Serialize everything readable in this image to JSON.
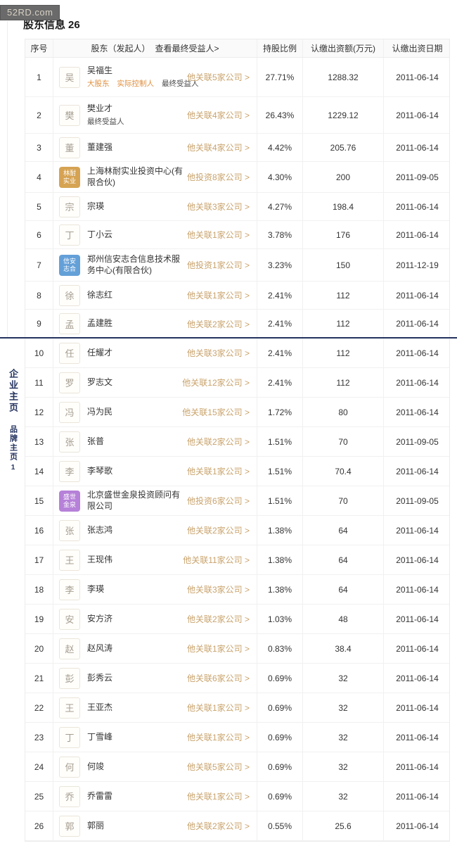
{
  "watermark": "52RD.com",
  "page": {
    "title": "股东信息",
    "count": "26"
  },
  "sidebar": {
    "tab_company": "企业主页",
    "tab_brand": "品牌主页",
    "brand_count": "1"
  },
  "colors": {
    "link_gold": "#c9a36c",
    "tag_orange": "#df8e3c",
    "divider_navy": "#24335f",
    "avatar_gold": "#d6a353",
    "avatar_blue": "#64a0d8",
    "avatar_purple": "#b681d8"
  },
  "table": {
    "headers": {
      "index": "序号",
      "shareholder": "股东（发起人）",
      "beneficiary_link": "查看最终受益人>",
      "ratio": "持股比例",
      "amount": "认缴出资额(万元)",
      "date": "认缴出资日期"
    },
    "rows": [
      {
        "num": "1",
        "avatar": {
          "style": "person",
          "text": "吴"
        },
        "name": "吴福生",
        "tags": [
          {
            "text": "大股东",
            "tone": "orange"
          },
          {
            "text": "实际控制人",
            "tone": "orange"
          },
          {
            "text": "最终受益人",
            "tone": "dark"
          }
        ],
        "link": "他关联5家公司 >",
        "ratio": "27.71%",
        "amount": "1288.32",
        "date": "2011-06-14"
      },
      {
        "num": "2",
        "avatar": {
          "style": "person",
          "text": "樊"
        },
        "name": "樊业才",
        "tags": [
          {
            "text": "最终受益人",
            "tone": "dark"
          }
        ],
        "link": "他关联4家公司 >",
        "ratio": "26.43%",
        "amount": "1229.12",
        "date": "2011-06-14"
      },
      {
        "num": "3",
        "avatar": {
          "style": "person",
          "text": "董"
        },
        "name": "董建强",
        "tags": [],
        "link": "他关联4家公司 >",
        "ratio": "4.42%",
        "amount": "205.76",
        "date": "2011-06-14"
      },
      {
        "num": "4",
        "avatar": {
          "style": "org-gold",
          "lines": [
            "林耐",
            "实业"
          ]
        },
        "name": "上海林耐实业投资中心(有限合伙)",
        "tags": [],
        "link": "他投资8家公司 >",
        "ratio": "4.30%",
        "amount": "200",
        "date": "2011-09-05"
      },
      {
        "num": "5",
        "avatar": {
          "style": "person",
          "text": "宗"
        },
        "name": "宗瑛",
        "tags": [],
        "link": "他关联3家公司 >",
        "ratio": "4.27%",
        "amount": "198.4",
        "date": "2011-06-14"
      },
      {
        "num": "6",
        "avatar": {
          "style": "person",
          "text": "丁"
        },
        "name": "丁小云",
        "tags": [],
        "link": "他关联1家公司 >",
        "ratio": "3.78%",
        "amount": "176",
        "date": "2011-06-14"
      },
      {
        "num": "7",
        "avatar": {
          "style": "org-blue",
          "lines": [
            "信安",
            "志合"
          ]
        },
        "name": "郑州信安志合信息技术服务中心(有限合伙)",
        "tags": [],
        "link": "他投资1家公司 >",
        "ratio": "3.23%",
        "amount": "150",
        "date": "2011-12-19"
      },
      {
        "num": "8",
        "avatar": {
          "style": "person",
          "text": "徐"
        },
        "name": "徐志红",
        "tags": [],
        "link": "他关联1家公司 >",
        "ratio": "2.41%",
        "amount": "112",
        "date": "2011-06-14"
      },
      {
        "num": "9",
        "avatar": {
          "style": "person",
          "text": "孟"
        },
        "name": "孟建胜",
        "tags": [],
        "link": "他关联2家公司 >",
        "ratio": "2.41%",
        "amount": "112",
        "date": "2011-06-14"
      },
      {
        "num": "10",
        "avatar": {
          "style": "person",
          "text": "任"
        },
        "name": "任耀才",
        "tags": [],
        "link": "他关联3家公司 >",
        "ratio": "2.41%",
        "amount": "112",
        "date": "2011-06-14"
      },
      {
        "num": "11",
        "avatar": {
          "style": "person",
          "text": "罗"
        },
        "name": "罗志文",
        "tags": [],
        "link": "他关联12家公司 >",
        "ratio": "2.41%",
        "amount": "112",
        "date": "2011-06-14"
      },
      {
        "num": "12",
        "avatar": {
          "style": "person",
          "text": "冯"
        },
        "name": "冯为民",
        "tags": [],
        "link": "他关联15家公司 >",
        "ratio": "1.72%",
        "amount": "80",
        "date": "2011-06-14"
      },
      {
        "num": "13",
        "avatar": {
          "style": "person",
          "text": "张"
        },
        "name": "张普",
        "tags": [],
        "link": "他关联2家公司 >",
        "ratio": "1.51%",
        "amount": "70",
        "date": "2011-09-05"
      },
      {
        "num": "14",
        "avatar": {
          "style": "person",
          "text": "李"
        },
        "name": "李琴歌",
        "tags": [],
        "link": "他关联1家公司 >",
        "ratio": "1.51%",
        "amount": "70.4",
        "date": "2011-06-14"
      },
      {
        "num": "15",
        "avatar": {
          "style": "org-purple",
          "lines": [
            "盛世",
            "金泉"
          ]
        },
        "name": "北京盛世金泉投资顾问有限公司",
        "tags": [],
        "link": "他投资6家公司 >",
        "ratio": "1.51%",
        "amount": "70",
        "date": "2011-09-05"
      },
      {
        "num": "16",
        "avatar": {
          "style": "person",
          "text": "张"
        },
        "name": "张志鸿",
        "tags": [],
        "link": "他关联2家公司 >",
        "ratio": "1.38%",
        "amount": "64",
        "date": "2011-06-14"
      },
      {
        "num": "17",
        "avatar": {
          "style": "person",
          "text": "王"
        },
        "name": "王现伟",
        "tags": [],
        "link": "他关联11家公司 >",
        "ratio": "1.38%",
        "amount": "64",
        "date": "2011-06-14"
      },
      {
        "num": "18",
        "avatar": {
          "style": "person",
          "text": "李"
        },
        "name": "李瑛",
        "tags": [],
        "link": "他关联3家公司 >",
        "ratio": "1.38%",
        "amount": "64",
        "date": "2011-06-14"
      },
      {
        "num": "19",
        "avatar": {
          "style": "person",
          "text": "安"
        },
        "name": "安方济",
        "tags": [],
        "link": "他关联2家公司 >",
        "ratio": "1.03%",
        "amount": "48",
        "date": "2011-06-14"
      },
      {
        "num": "20",
        "avatar": {
          "style": "person",
          "text": "赵"
        },
        "name": "赵风涛",
        "tags": [],
        "link": "他关联1家公司 >",
        "ratio": "0.83%",
        "amount": "38.4",
        "date": "2011-06-14"
      },
      {
        "num": "21",
        "avatar": {
          "style": "person",
          "text": "彭"
        },
        "name": "彭秀云",
        "tags": [],
        "link": "他关联6家公司 >",
        "ratio": "0.69%",
        "amount": "32",
        "date": "2011-06-14"
      },
      {
        "num": "22",
        "avatar": {
          "style": "person",
          "text": "王"
        },
        "name": "王亚杰",
        "tags": [],
        "link": "他关联1家公司 >",
        "ratio": "0.69%",
        "amount": "32",
        "date": "2011-06-14"
      },
      {
        "num": "23",
        "avatar": {
          "style": "person",
          "text": "丁"
        },
        "name": "丁雪峰",
        "tags": [],
        "link": "他关联1家公司 >",
        "ratio": "0.69%",
        "amount": "32",
        "date": "2011-06-14"
      },
      {
        "num": "24",
        "avatar": {
          "style": "person",
          "text": "何"
        },
        "name": "何竣",
        "tags": [],
        "link": "他关联5家公司 >",
        "ratio": "0.69%",
        "amount": "32",
        "date": "2011-06-14"
      },
      {
        "num": "25",
        "avatar": {
          "style": "person",
          "text": "乔"
        },
        "name": "乔雷雷",
        "tags": [],
        "link": "他关联1家公司 >",
        "ratio": "0.69%",
        "amount": "32",
        "date": "2011-06-14"
      },
      {
        "num": "26",
        "avatar": {
          "style": "person",
          "text": "郭"
        },
        "name": "郭丽",
        "tags": [],
        "link": "他关联2家公司 >",
        "ratio": "0.55%",
        "amount": "25.6",
        "date": "2011-06-14"
      }
    ]
  }
}
